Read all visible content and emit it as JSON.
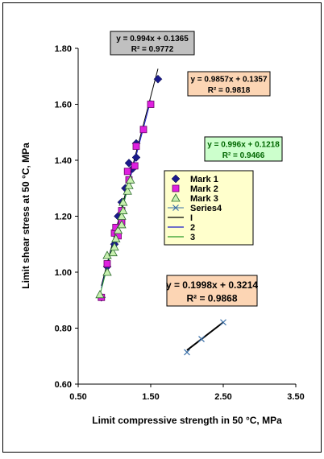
{
  "chart_data": {
    "type": "scatter",
    "title": "",
    "xlabel": "Limit compressive strength  in 50 °C, MPa",
    "ylabel": "Limit shear stress  at 50 °C, MPa",
    "xlim": [
      0.5,
      3.5
    ],
    "ylim": [
      0.6,
      1.8
    ],
    "xticks": [
      "0.50",
      "1.50",
      "2.50",
      "3.50"
    ],
    "yticks": [
      "0.60",
      "0.80",
      "1.00",
      "1.20",
      "1.40",
      "1.60",
      "1.80"
    ],
    "grid": false,
    "legend_position": "right",
    "colors": {
      "mark1": "#1a1a8c",
      "mark2": "#e020e0",
      "mark3": "#c8f0b0",
      "series4": "#3a6fa8",
      "trend1": "#000000",
      "trend2": "#1a1ac8",
      "trend3": "#2a9a2a",
      "plot_bg": "#ffffff",
      "legend_bg": "#ffffcc"
    },
    "series": [
      {
        "name": "Mark 1",
        "marker": "diamond",
        "points": [
          [
            0.82,
            0.91
          ],
          [
            0.9,
            1.02
          ],
          [
            1.0,
            1.1
          ],
          [
            1.05,
            1.2
          ],
          [
            1.1,
            1.25
          ],
          [
            1.15,
            1.3
          ],
          [
            1.2,
            1.39
          ],
          [
            1.25,
            1.37
          ],
          [
            1.3,
            1.41
          ],
          [
            1.3,
            1.46
          ],
          [
            1.6,
            1.69
          ]
        ]
      },
      {
        "name": "Mark 2",
        "marker": "square",
        "points": [
          [
            0.82,
            0.91
          ],
          [
            0.9,
            1.03
          ],
          [
            1.0,
            1.14
          ],
          [
            1.02,
            1.16
          ],
          [
            1.05,
            1.13
          ],
          [
            1.1,
            1.18
          ],
          [
            1.1,
            1.22
          ],
          [
            1.18,
            1.36
          ],
          [
            1.2,
            1.33
          ],
          [
            1.28,
            1.38
          ],
          [
            1.3,
            1.45
          ],
          [
            1.4,
            1.51
          ],
          [
            1.5,
            1.6
          ]
        ]
      },
      {
        "name": "Mark 3",
        "marker": "triangle",
        "points": [
          [
            0.8,
            0.92
          ],
          [
            0.9,
            1.0
          ],
          [
            0.9,
            1.06
          ],
          [
            0.98,
            1.07
          ],
          [
            1.0,
            1.09
          ],
          [
            1.02,
            1.12
          ],
          [
            1.05,
            1.15
          ],
          [
            1.1,
            1.17
          ],
          [
            1.1,
            1.2
          ],
          [
            1.12,
            1.22
          ],
          [
            1.12,
            1.25
          ],
          [
            1.18,
            1.29
          ],
          [
            1.2,
            1.31
          ],
          [
            1.22,
            1.33
          ]
        ]
      },
      {
        "name": "Series4",
        "marker": "x",
        "points": [
          [
            2.0,
            0.7138
          ],
          [
            2.2,
            0.761
          ],
          [
            2.5,
            0.8209
          ]
        ]
      }
    ],
    "trendlines": [
      {
        "name": "I",
        "slope": 0.994,
        "intercept": 0.1365,
        "x_range": [
          0.82,
          1.6
        ],
        "equation": "y = 0.994x + 0.1365",
        "r2": "R² = 0.9772"
      },
      {
        "name": "2",
        "slope": 0.9857,
        "intercept": 0.1357,
        "x_range": [
          0.82,
          1.5
        ],
        "equation": "y = 0.9857x + 0.1357",
        "r2": "R² = 0.9818"
      },
      {
        "name": "3",
        "slope": 0.996,
        "intercept": 0.1218,
        "x_range": [
          0.8,
          1.22
        ],
        "equation": "y = 0.996x + 0.1218",
        "r2": "R² = 0.9466"
      },
      {
        "name": "",
        "slope": 0.1998,
        "intercept": 0.3214,
        "x_range": [
          2.0,
          2.5
        ],
        "equation": "y = 0.1998x  + 0.3214",
        "r2": "R² = 0.9868"
      }
    ],
    "legend": [
      "Mark 1",
      "Mark 2",
      "Mark 3",
      "Series4",
      "I",
      "2",
      "3"
    ]
  }
}
